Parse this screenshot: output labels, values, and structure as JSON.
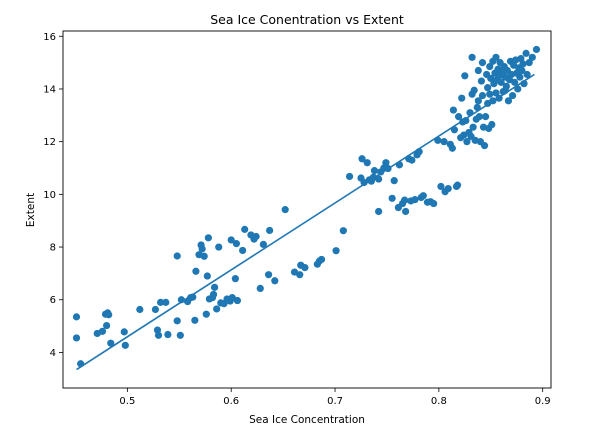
{
  "chart_data": {
    "type": "scatter",
    "title": "Sea Ice Conentration vs Extent",
    "xlabel": "Sea Ice Concentration",
    "ylabel": "Extent",
    "xlim": [
      0.438,
      0.908
    ],
    "ylim": [
      2.65,
      16.2
    ],
    "x_ticks": [
      0.5,
      0.6,
      0.7,
      0.8,
      0.9
    ],
    "x_tick_labels": [
      "0.5",
      "0.6",
      "0.7",
      "0.8",
      "0.9"
    ],
    "y_ticks": [
      4,
      6,
      8,
      10,
      12,
      14,
      16
    ],
    "y_tick_labels": [
      "4",
      "6",
      "8",
      "10",
      "12",
      "14",
      "16"
    ],
    "grid": false,
    "color": "#1f77b4",
    "fit_line": {
      "x": [
        0.451,
        0.892
      ],
      "y": [
        3.35,
        14.55
      ]
    },
    "points": [
      [
        0.451,
        5.35
      ],
      [
        0.451,
        4.55
      ],
      [
        0.455,
        3.57
      ],
      [
        0.471,
        4.72
      ],
      [
        0.476,
        4.8
      ],
      [
        0.479,
        5.45
      ],
      [
        0.48,
        5.02
      ],
      [
        0.481,
        5.5
      ],
      [
        0.482,
        5.43
      ],
      [
        0.484,
        4.35
      ],
      [
        0.497,
        4.78
      ],
      [
        0.498,
        4.27
      ],
      [
        0.512,
        5.63
      ],
      [
        0.527,
        5.63
      ],
      [
        0.529,
        4.85
      ],
      [
        0.53,
        4.65
      ],
      [
        0.532,
        5.9
      ],
      [
        0.537,
        5.9
      ],
      [
        0.539,
        4.68
      ],
      [
        0.548,
        5.2
      ],
      [
        0.548,
        7.66
      ],
      [
        0.551,
        4.65
      ],
      [
        0.552,
        6.0
      ],
      [
        0.558,
        5.93
      ],
      [
        0.561,
        6.08
      ],
      [
        0.563,
        6.1
      ],
      [
        0.565,
        5.22
      ],
      [
        0.566,
        7.08
      ],
      [
        0.569,
        7.71
      ],
      [
        0.571,
        8.08
      ],
      [
        0.572,
        7.93
      ],
      [
        0.574,
        7.65
      ],
      [
        0.576,
        5.45
      ],
      [
        0.577,
        6.9
      ],
      [
        0.578,
        8.35
      ],
      [
        0.579,
        6.03
      ],
      [
        0.582,
        6.08
      ],
      [
        0.583,
        6.2
      ],
      [
        0.584,
        6.47
      ],
      [
        0.586,
        5.65
      ],
      [
        0.588,
        8.0
      ],
      [
        0.59,
        5.88
      ],
      [
        0.593,
        5.85
      ],
      [
        0.596,
        6.03
      ],
      [
        0.599,
        5.95
      ],
      [
        0.6,
        8.27
      ],
      [
        0.601,
        6.08
      ],
      [
        0.604,
        6.8
      ],
      [
        0.605,
        8.13
      ],
      [
        0.606,
        5.97
      ],
      [
        0.611,
        7.87
      ],
      [
        0.613,
        8.67
      ],
      [
        0.619,
        8.46
      ],
      [
        0.622,
        8.3
      ],
      [
        0.624,
        8.4
      ],
      [
        0.628,
        6.43
      ],
      [
        0.631,
        8.1
      ],
      [
        0.636,
        6.95
      ],
      [
        0.637,
        8.63
      ],
      [
        0.642,
        6.72
      ],
      [
        0.652,
        9.42
      ],
      [
        0.661,
        7.05
      ],
      [
        0.666,
        6.95
      ],
      [
        0.667,
        7.31
      ],
      [
        0.671,
        7.22
      ],
      [
        0.683,
        7.35
      ],
      [
        0.685,
        7.47
      ],
      [
        0.687,
        7.53
      ],
      [
        0.701,
        7.86
      ],
      [
        0.708,
        8.62
      ],
      [
        0.714,
        10.68
      ],
      [
        0.725,
        10.62
      ],
      [
        0.726,
        11.35
      ],
      [
        0.728,
        10.45
      ],
      [
        0.731,
        11.2
      ],
      [
        0.733,
        10.55
      ],
      [
        0.735,
        10.5
      ],
      [
        0.737,
        10.65
      ],
      [
        0.738,
        10.9
      ],
      [
        0.742,
        10.58
      ],
      [
        0.742,
        9.35
      ],
      [
        0.744,
        10.85
      ],
      [
        0.747,
        11.0
      ],
      [
        0.749,
        11.2
      ],
      [
        0.751,
        10.98
      ],
      [
        0.755,
        9.85
      ],
      [
        0.757,
        10.52
      ],
      [
        0.761,
        9.5
      ],
      [
        0.762,
        11.12
      ],
      [
        0.765,
        9.65
      ],
      [
        0.767,
        9.78
      ],
      [
        0.768,
        9.35
      ],
      [
        0.771,
        11.35
      ],
      [
        0.773,
        9.75
      ],
      [
        0.774,
        11.3
      ],
      [
        0.777,
        9.8
      ],
      [
        0.779,
        11.5
      ],
      [
        0.781,
        11.62
      ],
      [
        0.783,
        9.88
      ],
      [
        0.785,
        9.95
      ],
      [
        0.789,
        9.7
      ],
      [
        0.792,
        9.72
      ],
      [
        0.795,
        9.65
      ],
      [
        0.799,
        12.05
      ],
      [
        0.802,
        10.3
      ],
      [
        0.805,
        12.0
      ],
      [
        0.806,
        10.1
      ],
      [
        0.809,
        10.22
      ],
      [
        0.811,
        11.9
      ],
      [
        0.813,
        11.75
      ],
      [
        0.814,
        13.2
      ],
      [
        0.815,
        12.45
      ],
      [
        0.817,
        10.3
      ],
      [
        0.818,
        10.35
      ],
      [
        0.819,
        12.95
      ],
      [
        0.821,
        12.15
      ],
      [
        0.822,
        13.65
      ],
      [
        0.823,
        12.75
      ],
      [
        0.824,
        12.25
      ],
      [
        0.825,
        14.5
      ],
      [
        0.826,
        12.8
      ],
      [
        0.827,
        12.0
      ],
      [
        0.829,
        12.35
      ],
      [
        0.83,
        13.1
      ],
      [
        0.831,
        12.2
      ],
      [
        0.832,
        13.8
      ],
      [
        0.832,
        15.2
      ],
      [
        0.833,
        12.55
      ],
      [
        0.834,
        13.95
      ],
      [
        0.835,
        12.05
      ],
      [
        0.836,
        12.85
      ],
      [
        0.837,
        13.3
      ],
      [
        0.838,
        13.55
      ],
      [
        0.838,
        14.7
      ],
      [
        0.839,
        12.95
      ],
      [
        0.84,
        12.0
      ],
      [
        0.841,
        14.3
      ],
      [
        0.842,
        13.75
      ],
      [
        0.842,
        15.0
      ],
      [
        0.843,
        12.55
      ],
      [
        0.844,
        11.85
      ],
      [
        0.845,
        12.95
      ],
      [
        0.846,
        14.55
      ],
      [
        0.847,
        13.45
      ],
      [
        0.847,
        14.05
      ],
      [
        0.848,
        12.5
      ],
      [
        0.849,
        14.85
      ],
      [
        0.849,
        13.8
      ],
      [
        0.85,
        14.4
      ],
      [
        0.851,
        12.65
      ],
      [
        0.852,
        13.55
      ],
      [
        0.852,
        15.05
      ],
      [
        0.853,
        14.2
      ],
      [
        0.854,
        14.6
      ],
      [
        0.855,
        13.85
      ],
      [
        0.855,
        15.2
      ],
      [
        0.856,
        14.35
      ],
      [
        0.857,
        14.75
      ],
      [
        0.858,
        13.65
      ],
      [
        0.858,
        14.5
      ],
      [
        0.859,
        15.0
      ],
      [
        0.86,
        14.25
      ],
      [
        0.861,
        14.65
      ],
      [
        0.862,
        13.9
      ],
      [
        0.863,
        14.85
      ],
      [
        0.864,
        13.95
      ],
      [
        0.864,
        14.45
      ],
      [
        0.865,
        14.1
      ],
      [
        0.866,
        14.7
      ],
      [
        0.867,
        13.55
      ],
      [
        0.868,
        14.35
      ],
      [
        0.869,
        15.05
      ],
      [
        0.87,
        14.55
      ],
      [
        0.871,
        13.75
      ],
      [
        0.872,
        14.9
      ],
      [
        0.873,
        14.25
      ],
      [
        0.874,
        15.1
      ],
      [
        0.875,
        14.6
      ],
      [
        0.876,
        14.0
      ],
      [
        0.877,
        14.8
      ],
      [
        0.878,
        14.45
      ],
      [
        0.879,
        15.15
      ],
      [
        0.88,
        14.7
      ],
      [
        0.881,
        14.95
      ],
      [
        0.882,
        14.2
      ],
      [
        0.884,
        15.35
      ],
      [
        0.885,
        14.55
      ],
      [
        0.887,
        15.0
      ],
      [
        0.89,
        15.2
      ],
      [
        0.894,
        15.5
      ]
    ]
  }
}
